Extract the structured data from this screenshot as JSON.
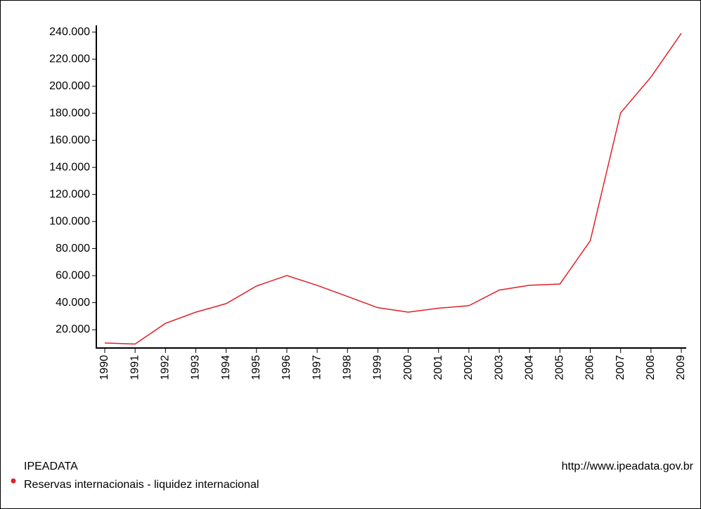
{
  "chart_data": {
    "type": "line",
    "categories": [
      "1990",
      "1991",
      "1992",
      "1993",
      "1994",
      "1995",
      "1996",
      "1997",
      "1998",
      "1999",
      "2000",
      "2001",
      "2002",
      "2003",
      "2004",
      "2005",
      "2006",
      "2007",
      "2008",
      "2009"
    ],
    "series": [
      {
        "name": "Reservas internacionais - liquidez internacional",
        "color": "#e0202a",
        "values": [
          10200,
          9400,
          24700,
          33000,
          39300,
          52300,
          60100,
          52800,
          44600,
          36300,
          33000,
          35900,
          37800,
          49300,
          52900,
          53800,
          85800,
          180300,
          206800,
          239100
        ]
      }
    ],
    "ylim": [
      6500,
      244000
    ],
    "yticks": [
      {
        "value": 20000,
        "label": "20.000"
      },
      {
        "value": 40000,
        "label": "40.000"
      },
      {
        "value": 60000,
        "label": "60.000"
      },
      {
        "value": 80000,
        "label": "80.000"
      },
      {
        "value": 100000,
        "label": "100.000"
      },
      {
        "value": 120000,
        "label": "120.000"
      },
      {
        "value": 140000,
        "label": "140.000"
      },
      {
        "value": 160000,
        "label": "160.000"
      },
      {
        "value": 180000,
        "label": "180.000"
      },
      {
        "value": 200000,
        "label": "200.000"
      },
      {
        "value": 220000,
        "label": "220.000"
      },
      {
        "value": 240000,
        "label": "240.000"
      }
    ],
    "source": "IPEADATA",
    "url": "http://www.ipeadata.gov.br"
  }
}
